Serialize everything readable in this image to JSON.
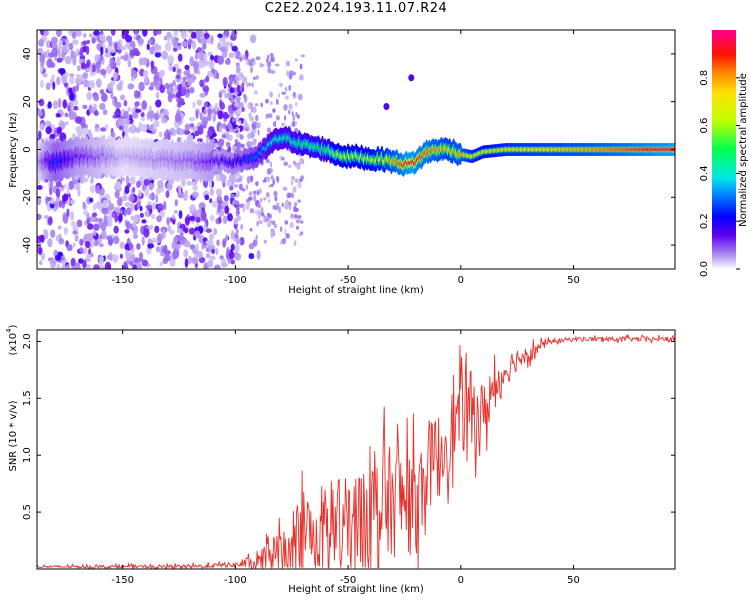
{
  "title": "C2E2.2024.193.11.07.R24",
  "chart_data": [
    {
      "type": "heatmap",
      "title": "",
      "xlabel": "Height of straight line (km)",
      "ylabel": "Frequency (Hz)",
      "xlim": [
        -188,
        95
      ],
      "ylim": [
        -50,
        50
      ],
      "xticks": [
        -150,
        -100,
        -50,
        0,
        50
      ],
      "yticks": [
        -40,
        -20,
        0,
        20,
        40
      ],
      "colorbar": {
        "label": "Normalized spectral amplitude",
        "range": [
          0,
          1
        ],
        "ticks": [
          "0.0",
          "0.2",
          "0.4",
          "0.6",
          "0.8"
        ]
      },
      "ridge": {
        "x": [
          -188,
          -180,
          -170,
          -150,
          -120,
          -100,
          -90,
          -85,
          -80,
          -75,
          -70,
          -65,
          -60,
          -55,
          -50,
          -45,
          -40,
          -35,
          -30,
          -25,
          -22,
          -20,
          -15,
          -10,
          -5,
          0,
          5,
          10,
          20,
          40,
          60,
          95
        ],
        "freq": [
          -5,
          -5,
          -3,
          -3,
          -5,
          -5,
          -3,
          2,
          5,
          4,
          2,
          1,
          0,
          -2,
          -3,
          -3,
          -4,
          -4,
          -5,
          -6,
          -6,
          -5,
          -1,
          0,
          0,
          -2,
          -3,
          -1,
          0,
          0,
          0,
          0
        ],
        "amplitude": [
          0.05,
          0.25,
          0.15,
          0.05,
          0.1,
          0.2,
          0.3,
          0.4,
          0.45,
          0.45,
          0.5,
          0.5,
          0.5,
          0.6,
          0.65,
          0.6,
          0.65,
          0.7,
          0.8,
          0.9,
          0.95,
          0.9,
          0.85,
          0.8,
          0.75,
          0.8,
          0.7,
          0.65,
          0.7,
          0.75,
          0.8,
          0.95
        ]
      },
      "features": [
        {
          "x": -33,
          "freq": 18,
          "amplitude": 0.1
        },
        {
          "x": -22,
          "freq": 30,
          "amplitude": 0.1
        }
      ]
    },
    {
      "type": "line",
      "title": "",
      "xlabel": "Height of straight line (km)",
      "ylabel": "SNR (10 * v/v)",
      "multiplier_label": "(x10",
      "multiplier_exponent": "4",
      "xlim": [
        -188,
        95
      ],
      "ylim": [
        0,
        2.1
      ],
      "xticks": [
        -150,
        -100,
        -50,
        0,
        50
      ],
      "yticks": [
        0.5,
        1.0,
        1.5,
        2.0
      ],
      "ytick_labels": [
        "0.5",
        "1.0",
        "1.5",
        "2.0"
      ],
      "color": "#e8302a",
      "trend": {
        "x": [
          -188,
          -120,
          -100,
          -90,
          -85,
          -80,
          -75,
          -70,
          -65,
          -60,
          -55,
          -50,
          -45,
          -40,
          -35,
          -30,
          -25,
          -20,
          -15,
          -10,
          -5,
          0,
          5,
          10,
          15,
          20,
          25,
          30,
          35,
          40,
          50,
          60,
          80,
          95
        ],
        "y": [
          0.02,
          0.02,
          0.04,
          0.05,
          0.1,
          0.15,
          0.3,
          0.35,
          0.3,
          0.35,
          0.4,
          0.35,
          0.45,
          0.5,
          0.55,
          0.6,
          0.6,
          0.55,
          0.9,
          1.0,
          1.2,
          1.35,
          1.4,
          1.35,
          1.6,
          1.75,
          1.85,
          1.9,
          1.95,
          2.0,
          2.02,
          2.02,
          2.02,
          2.02
        ]
      },
      "noise_amplitude": {
        "x": [
          -188,
          -100,
          -90,
          -80,
          -70,
          -50,
          -30,
          -20,
          -15,
          -5,
          5,
          15,
          25,
          35,
          40,
          95
        ],
        "y": [
          0.01,
          0.02,
          0.08,
          0.25,
          0.4,
          0.45,
          0.5,
          0.45,
          0.4,
          0.35,
          0.35,
          0.2,
          0.1,
          0.05,
          0.02,
          0.02
        ]
      }
    }
  ]
}
